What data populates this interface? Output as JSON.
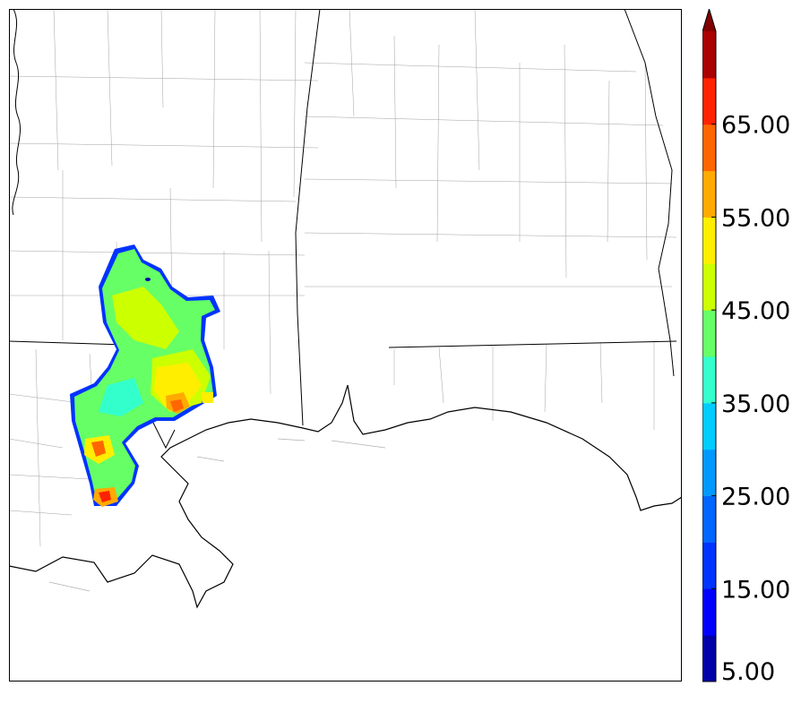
{
  "colorbar": {
    "extend": "max",
    "colors": [
      "#0000a8",
      "#0000ff",
      "#0033ff",
      "#0066ff",
      "#0099ff",
      "#00ccff",
      "#33ffcc",
      "#66ff66",
      "#ccff00",
      "#ffee00",
      "#ffaa00",
      "#ff6600",
      "#ff2200",
      "#aa0000"
    ],
    "extend_color": "#800000",
    "tick_labels": [
      "5.00",
      "15.00",
      "25.00",
      "35.00",
      "45.00",
      "55.00",
      "65.00"
    ]
  },
  "map": {
    "boundary_color": "#000000",
    "county_color": "#9a9a9a"
  }
}
